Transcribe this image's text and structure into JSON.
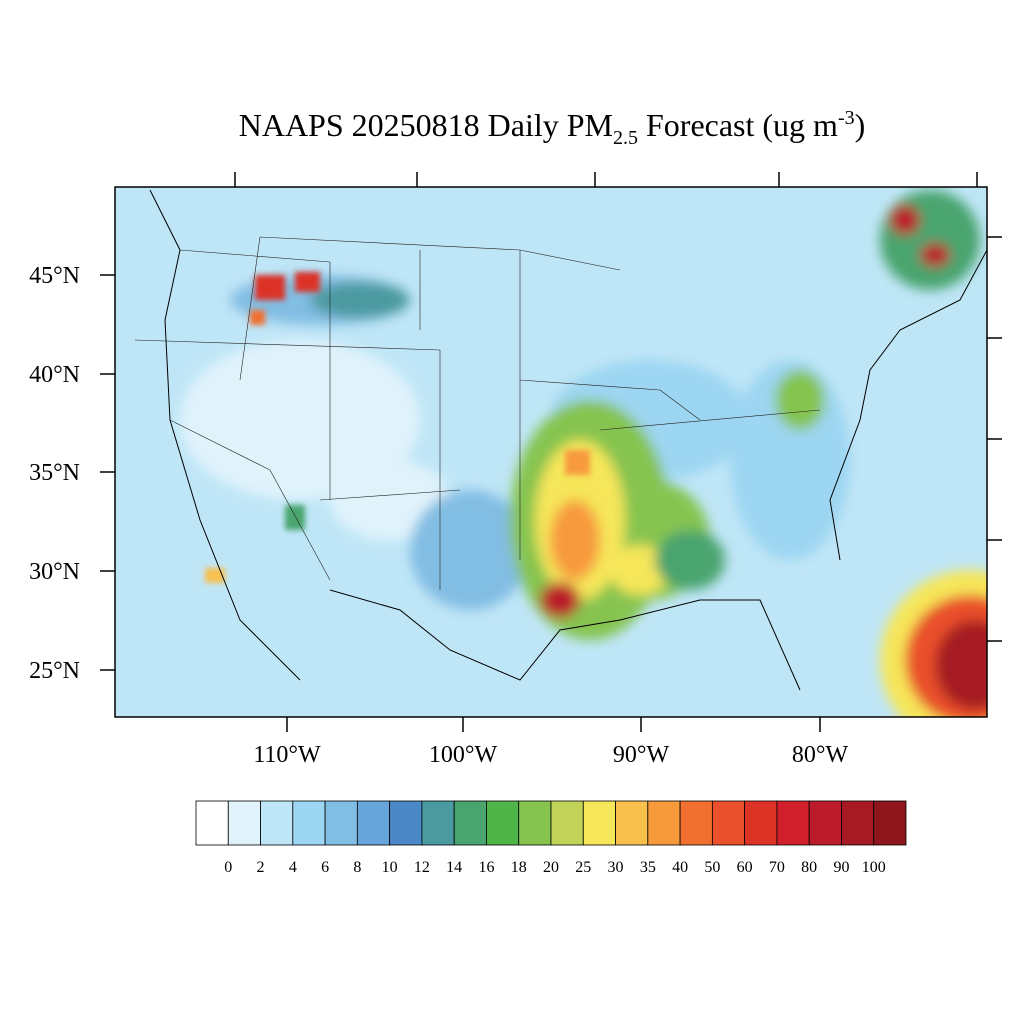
{
  "title": {
    "parts": [
      "NAAPS 20250818 Daily PM",
      "2.5",
      " Forecast (ug m",
      "-3",
      ")"
    ]
  },
  "latitude_labels": [
    "45°N",
    "40°N",
    "35°N",
    "30°N",
    "25°N"
  ],
  "longitude_labels": [
    "110°W",
    "100°W",
    "90°W",
    "80°W"
  ],
  "colorbar": {
    "colors": [
      "#ffffff",
      "#e0f3fb",
      "#bfe6f7",
      "#9dd6f2",
      "#82bde3",
      "#66a6da",
      "#4a88c8",
      "#4b9aa0",
      "#4aa46e",
      "#4fb549",
      "#86c44f",
      "#c1d459",
      "#f6e65a",
      "#f8bf4c",
      "#f79a3c",
      "#f2702f",
      "#e9502c",
      "#dd3327",
      "#d11f2b",
      "#bb1b2a",
      "#a61a24",
      "#8e161c"
    ],
    "labels": [
      "0",
      "2",
      "4",
      "6",
      "8",
      "10",
      "12",
      "14",
      "16",
      "18",
      "20",
      "25",
      "30",
      "35",
      "40",
      "50",
      "60",
      "70",
      "80",
      "90",
      "100"
    ]
  }
}
